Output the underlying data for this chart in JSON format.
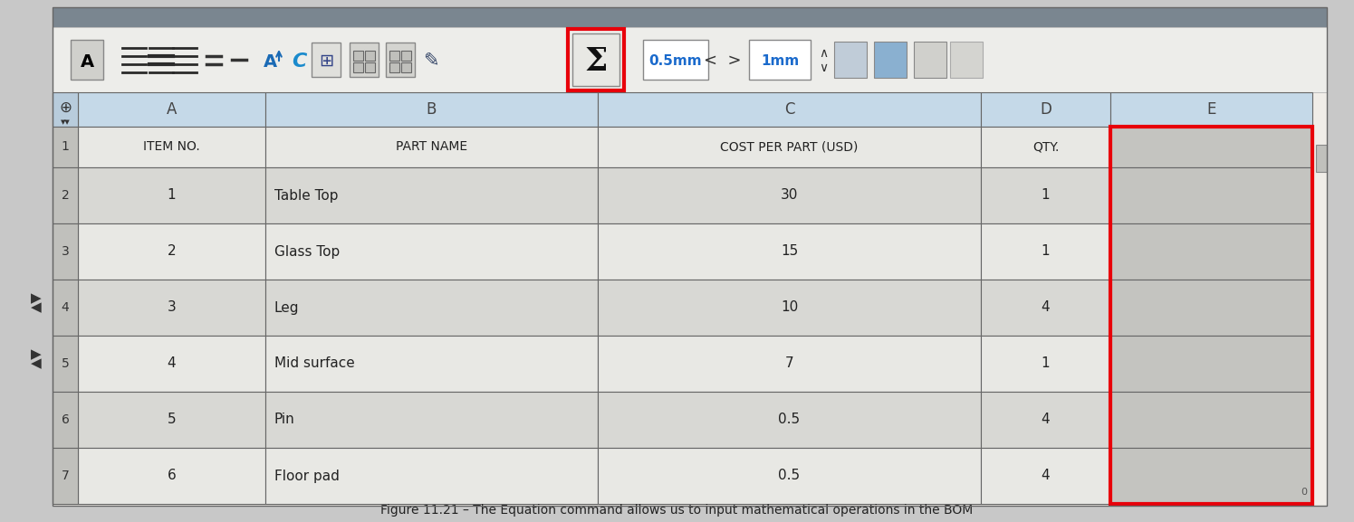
{
  "title": "Figure 11.21 – The Equation command allows us to input mathematical operations in the BOM",
  "fig_bg": "#c8c8c8",
  "content_bg": "#f0ede8",
  "title_bar_color": "#7a8690",
  "toolbar_bg": "#ededea",
  "toolbar_border": "#aaaaaa",
  "table_header_bg": "#c5d9e8",
  "table_col_header_bg": "#c5d9e8",
  "table_row_num_header_bg": "#b8ccdc",
  "table_row_odd_bg": "#d8d8d4",
  "table_row_even_bg": "#e8e8e4",
  "table_col_e_bg": "#c4c4c0",
  "red_color": "#e8000a",
  "col_headers": [
    "A",
    "B",
    "C",
    "D",
    "E"
  ],
  "row_headers": [
    "1",
    "2",
    "3",
    "4",
    "5",
    "6",
    "7"
  ],
  "col1_header": "ITEM NO.",
  "col2_header": "PART NAME",
  "col3_header": "COST PER PART (USD)",
  "col4_header": "QTY.",
  "data_rows": [
    [
      "1",
      "Table Top",
      "30",
      "1"
    ],
    [
      "2",
      "Glass Top",
      "15",
      "1"
    ],
    [
      "3",
      "Leg",
      "10",
      "4"
    ],
    [
      "4",
      "Mid surface",
      "7",
      "1"
    ],
    [
      "5",
      "Pin",
      "0.5",
      "4"
    ],
    [
      "6",
      "Floor pad",
      "0.5",
      "4"
    ]
  ]
}
